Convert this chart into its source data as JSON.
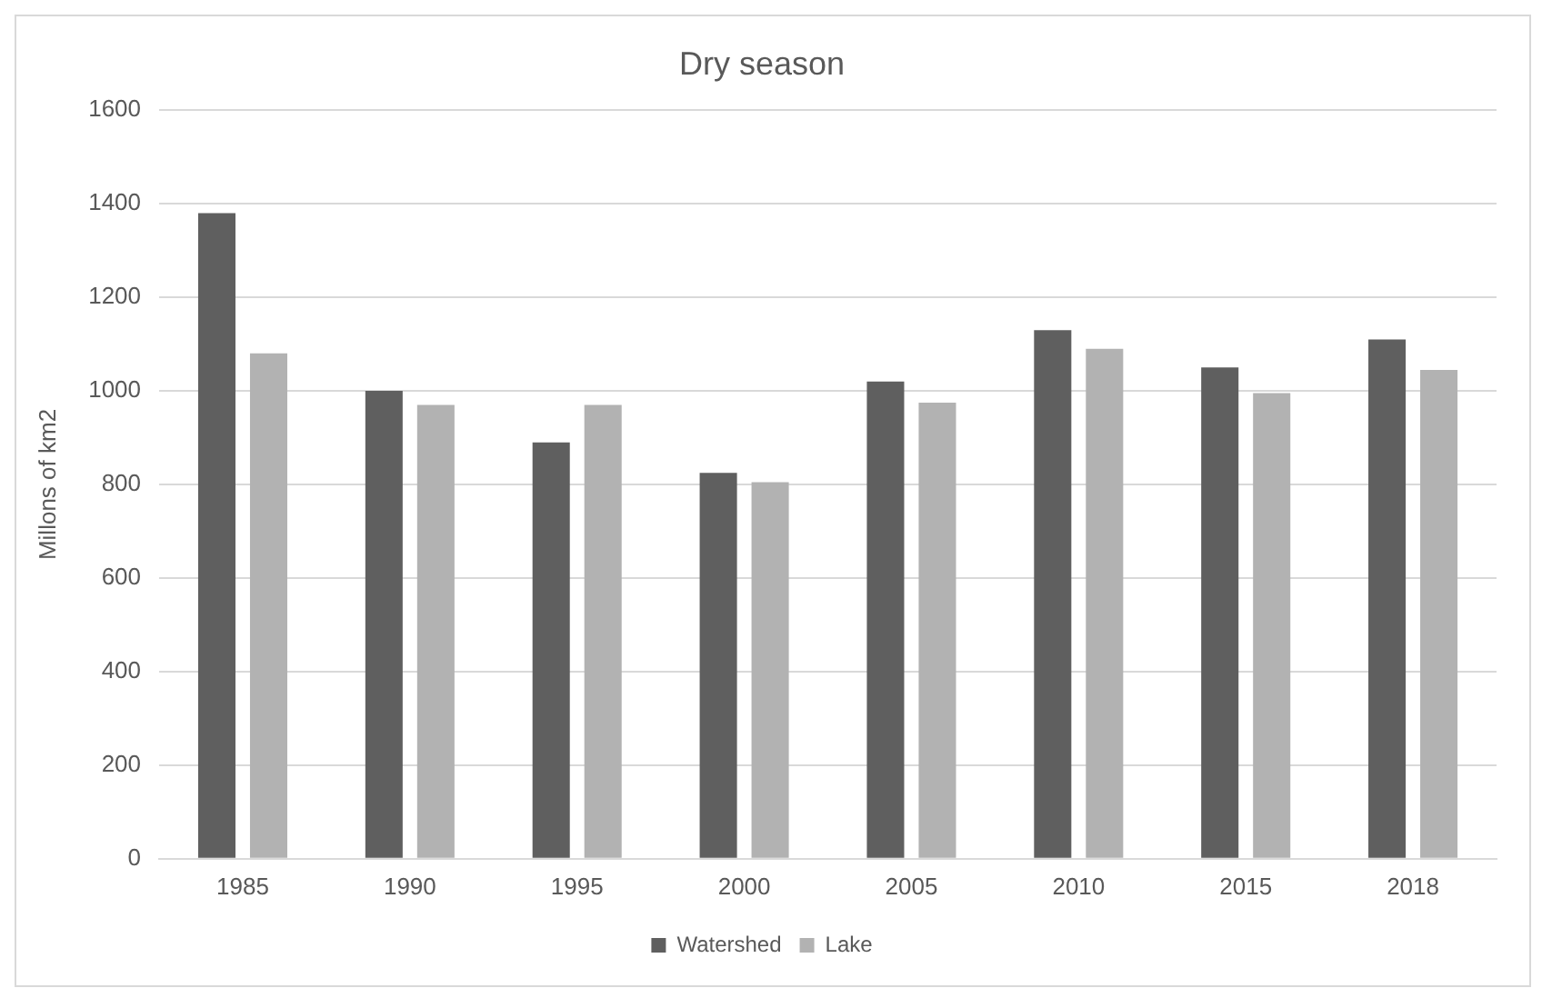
{
  "chart_data": {
    "type": "bar",
    "title": "Dry season",
    "ylabel": "Millons of km2",
    "categories": [
      "1985",
      "1990",
      "1995",
      "2000",
      "2005",
      "2010",
      "2015",
      "2018"
    ],
    "series": [
      {
        "name": "Watershed",
        "color": "#5f5f5f",
        "values": [
          1380,
          1000,
          890,
          825,
          1020,
          1130,
          1050,
          1110
        ]
      },
      {
        "name": "Lake",
        "color": "#b2b2b2",
        "values": [
          1080,
          970,
          970,
          805,
          975,
          1090,
          995,
          1045
        ]
      }
    ],
    "ylim": [
      0,
      1600
    ],
    "yticks": [
      0,
      200,
      400,
      600,
      800,
      1000,
      1200,
      1400,
      1600
    ],
    "grid": "y",
    "legend": "bottom"
  }
}
